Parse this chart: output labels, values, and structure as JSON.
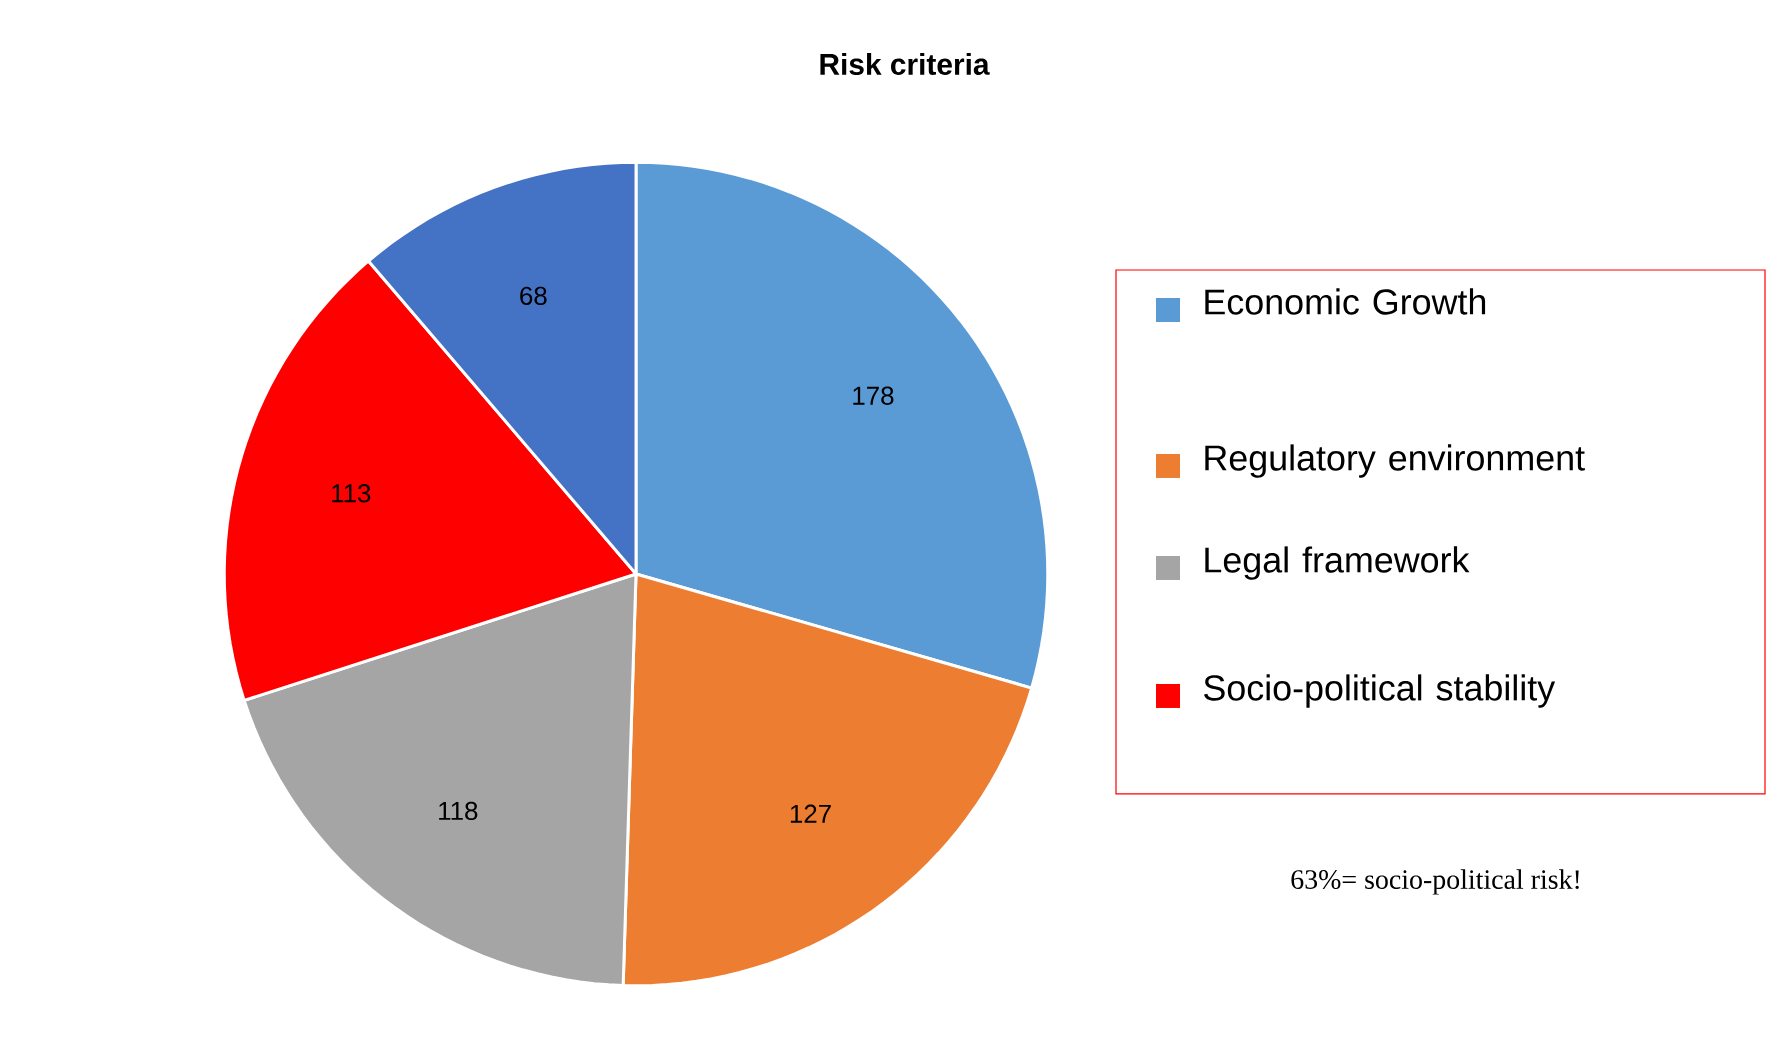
{
  "chart_data": {
    "type": "pie",
    "title": "Risk criteria",
    "categories": [
      "Economic Growth",
      "Regulatory environment",
      "Legal framework",
      "Socio-political stability",
      null
    ],
    "values": [
      178,
      127,
      118,
      113,
      68
    ],
    "colors": [
      "#5b9bd5",
      "#ed7d31",
      "#a5a5a5",
      "#ff0000",
      "#4472c4"
    ],
    "data_labels": true,
    "legend": "right",
    "annotations": [
      "63%= socio-political risk!"
    ]
  }
}
